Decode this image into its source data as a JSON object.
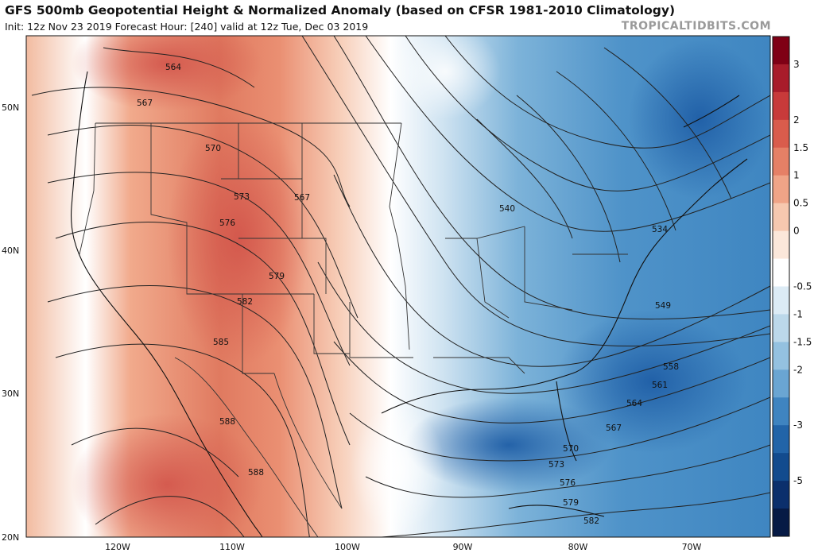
{
  "header": {
    "title": "GFS 500mb Geopotential Height & Normalized Anomaly (based on CFSR 1981-2010 Climatology)",
    "subtitle": "Init: 12z Nov 23 2019   Forecast Hour: [240]   valid at 12z Tue, Dec 03 2019",
    "brand": "TROPICALTIDBITS.COM"
  },
  "map": {
    "lat_labels": [
      "50N",
      "40N",
      "30N",
      "20N"
    ],
    "lon_labels": [
      "120W",
      "110W",
      "100W",
      "90W",
      "80W",
      "70W"
    ],
    "contour_labels": [
      "564",
      "567",
      "570",
      "573",
      "576",
      "567",
      "579",
      "582",
      "585",
      "588",
      "588",
      "540",
      "534",
      "549",
      "558",
      "561",
      "564",
      "567",
      "570",
      "573",
      "576",
      "579",
      "582"
    ]
  },
  "colorbar": {
    "ticks": [
      "3",
      "2",
      "1.5",
      "1",
      "0.5",
      "0",
      "-0.5",
      "-1",
      "-1.5",
      "-2",
      "-3",
      "-5"
    ],
    "colors": [
      "#7f0015",
      "#a81c2a",
      "#c83a3a",
      "#d95c4c",
      "#e58066",
      "#efa487",
      "#f6c8af",
      "#fbe7da",
      "#ffffff",
      "#dcebf5",
      "#bcd8ea",
      "#94c1e0",
      "#6aa5d2",
      "#3f84c0",
      "#2264a8",
      "#124b8e",
      "#0b2f6c",
      "#061a45"
    ]
  }
}
